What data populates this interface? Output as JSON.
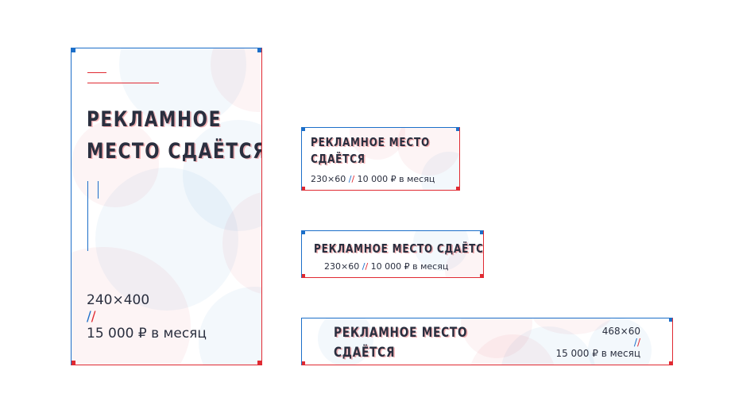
{
  "colors": {
    "accent_blue": "#1c6fc9",
    "accent_red": "#e02a32",
    "text": "#2a2f3f"
  },
  "banner_vertical": {
    "title_line1": "Рекламное",
    "title_line2": "место сдаётся",
    "size": "240×400",
    "sep_a": "/",
    "sep_b": "/",
    "price": "15 000 ₽ в месяц"
  },
  "banner_small_a": {
    "title_line1": "Рекламное место",
    "title_line2": "сдаётся",
    "size": "230×60",
    "sep_a": "/",
    "sep_b": "/",
    "price": "10 000 ₽ в месяц"
  },
  "banner_small_b": {
    "title": "Рекламное место сдаётся",
    "size": "230×60",
    "sep_a": "/",
    "sep_b": "/",
    "price": "10 000 ₽ в месяц"
  },
  "banner_wide": {
    "title_line1": "Рекламное место",
    "title_line2": "сдаётся",
    "size": "468×60",
    "sep_a": "/",
    "sep_b": "/",
    "price": "15 000 ₽ в месяц"
  }
}
